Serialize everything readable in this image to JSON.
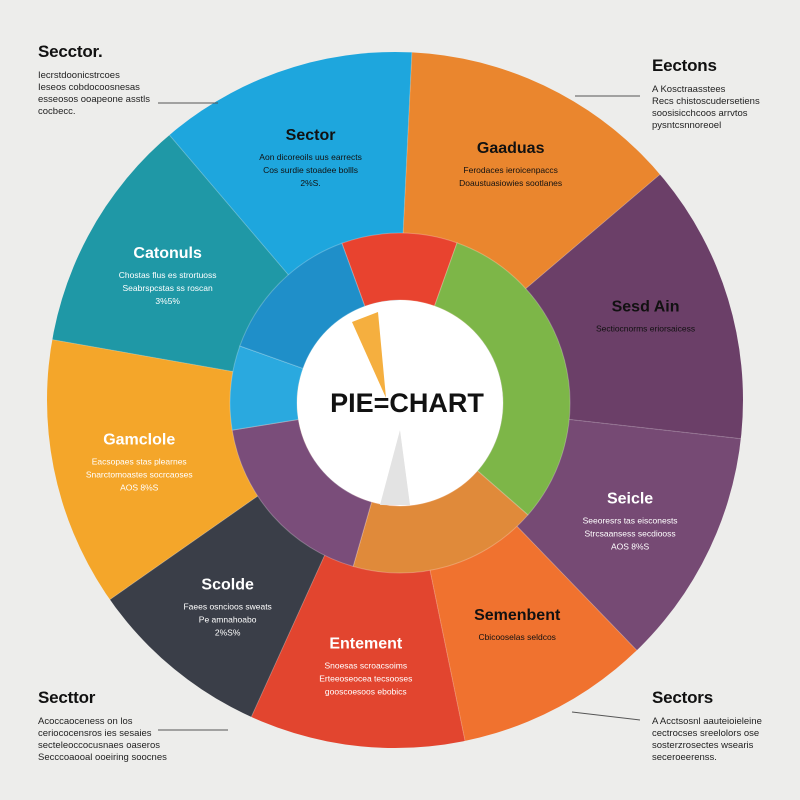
{
  "colors": {
    "background": "#ededeb",
    "center_fill": "#ffffff",
    "leader_line": "#555555"
  },
  "chart_data": {
    "type": "pie",
    "title": "PIE=CHART",
    "series": [
      {
        "name": "outer_ring",
        "slices": [
          {
            "label": "Gamclole",
            "value": 12.5,
            "color": "#f4a62a",
            "text_color": "#ffffff",
            "desc": [
              "Eacsopaes stas plearnes",
              "Snarctomoastes socrcaoses",
              "AOS 8%S"
            ]
          },
          {
            "label": "Catonuls",
            "value": 11,
            "color": "#1f98a6",
            "text_color": "#ffffff",
            "desc": [
              "Chostas flus es strortuoss",
              "Seabrspcstas ss roscan",
              "3%5%"
            ]
          },
          {
            "label": "Sector",
            "value": 12,
            "color": "#1ea6dd",
            "text_color": "#111111",
            "desc": [
              "Aon dicoreoils uus earrects",
              "Cos surdie stoadee bollls",
              "2%S."
            ]
          },
          {
            "label": "Gaaduas",
            "value": 13,
            "color": "#ea862e",
            "text_color": "#111111",
            "desc": [
              "Ferodaces ieroicenpaccs",
              "Doaustuasiowies sootlanes"
            ]
          },
          {
            "label": "Sesd Ain",
            "value": 13,
            "color": "#6b3f68",
            "text_color": "#111111",
            "desc": [
              "Sectiocnorms eriorsaicess"
            ]
          },
          {
            "label": "Seicle",
            "value": 11,
            "color": "#764a74",
            "text_color": "#ffffff",
            "desc": [
              "Seeoresrs tas eisconests",
              "Strcsaansess secdiooss",
              "AOS 8%S"
            ]
          },
          {
            "label": "Semenbent",
            "value": 9,
            "color": "#f0722f",
            "text_color": "#111111",
            "desc": [
              "Cbicooselas seldcos"
            ]
          },
          {
            "label": "Entement",
            "value": 10,
            "color": "#e2452f",
            "text_color": "#ffffff",
            "desc": [
              "Snoesas scroacsoims",
              "Erteeoseocea tecsooses",
              "gooscoesoos ebobics"
            ]
          },
          {
            "label": "Scolde",
            "value": 8.5,
            "color": "#3a3e48",
            "text_color": "#ffffff",
            "desc": [
              "Faees osncioos sweats",
              "Pe amnahoabo",
              "2%S%"
            ]
          }
        ]
      },
      {
        "name": "inner_ring",
        "slices": [
          {
            "value": 11,
            "color": "#e8432f"
          },
          {
            "value": 31,
            "color": "#7db648"
          },
          {
            "value": 18,
            "color": "#e08a3a"
          },
          {
            "value": 18,
            "color": "#7a4d7a"
          },
          {
            "value": 8,
            "color": "#2aa9df"
          },
          {
            "value": 14,
            "color": "#1f8fc9"
          }
        ]
      }
    ]
  },
  "callouts": {
    "top_left": {
      "title": "Secctor.",
      "lines": [
        "Iecrstdoonicstrcoes",
        "Ieseos cobdocoosnesas",
        "esseosos ooapeone asstls",
        "cocbecc."
      ]
    },
    "top_right": {
      "title": "Eectons",
      "lines": [
        "A Kosctraasstees",
        "Recs chistoscudersetiens",
        "soosisicchcoos arrvtos",
        "pysntcsnnoreoel"
      ]
    },
    "bottom_left": {
      "title": "Secttor",
      "lines": [
        "Acoccaoceness on los",
        "ceriococensros ies sesaies",
        "secteleoccocusnaes oaseros",
        "Secccoaooal ooeiring soocnes"
      ]
    },
    "bottom_right": {
      "title": "Sectors",
      "lines": [
        "A Acctsosnl aauteioieleine",
        "cectrocses sreelolors ose",
        "sosterzrosectes wsearis",
        "seceroeerenss."
      ]
    }
  }
}
